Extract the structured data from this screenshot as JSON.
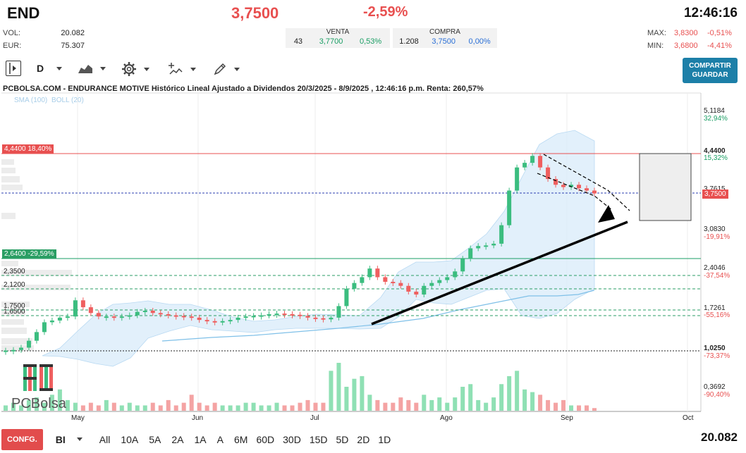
{
  "header": {
    "ticker": "END",
    "price": "3,7500",
    "change": "-2,59%",
    "clock": "12:46:16",
    "vol_label": "VOL:",
    "vol_value": "20.082",
    "eur_label": "EUR:",
    "eur_value": "75.307",
    "venta_label": "VENTA",
    "venta_qty": "43",
    "venta_price": "3,7700",
    "venta_pct": "0,53%",
    "compra_label": "COMPRA",
    "compra_qty": "1.208",
    "compra_price": "3,7500",
    "compra_pct": "0,00%",
    "max_label": "MAX:",
    "max_value": "3,8300",
    "max_pct": "-0,51%",
    "min_label": "MIN:",
    "min_value": "3,6800",
    "min_pct": "-4,41%"
  },
  "toolbar": {
    "period": "D",
    "share_label_1": "COMPARTIR",
    "share_label_2": "GUARDAR"
  },
  "chart": {
    "title": "PCBOLSA.COM - ENDURANCE MOTIVE Histórico Lineal Ajustado a Dividendos 20/3/2025 - 8/9/2025 , 12:46:16 p.m. Renta: 260,57%",
    "legend_sma": "SMA (100)",
    "legend_boll": "BOLL (20)",
    "tag_high": "4,4400  18,40%",
    "tag_mid": "2,6400  -29,59%",
    "level_2350": "2,3500",
    "level_2120": "2,1200",
    "level_1750": "1,7500",
    "level_1650": "1,6500",
    "right_axis": [
      {
        "price": "5,1184",
        "pct": "32,94%",
        "pct_color": "#1a9e64"
      },
      {
        "price": "4,4400",
        "pct": "15,32%",
        "pct_color": "#1a9e64"
      },
      {
        "price": "3,7615",
        "pct": "",
        "pct_color": ""
      },
      {
        "price": "3,0830",
        "pct": "-19,91%",
        "pct_color": "#e85050"
      },
      {
        "price": "2,4046",
        "pct": "-37,54%",
        "pct_color": "#e85050"
      },
      {
        "price": "1,7261",
        "pct": "-55,16%",
        "pct_color": "#e85050"
      },
      {
        "price": "1,0250",
        "pct": "-73,37%",
        "pct_color": "#e85050"
      },
      {
        "price": "0,3692",
        "pct": "-90,40%",
        "pct_color": "#e85050"
      }
    ],
    "current_tag": "3,7500",
    "months": [
      "May",
      "Jun",
      "Jul",
      "Ago",
      "Sep",
      "Oct"
    ],
    "logo_text": "PCBolsa"
  },
  "chart_data": {
    "type": "candlestick",
    "title": "PCBOLSA.COM - ENDURANCE MOTIVE Histórico Lineal Ajustado a Dividendos 20/3/2025 - 8/9/2025",
    "x_labels": [
      "May",
      "Jun",
      "Jul",
      "Ago",
      "Sep",
      "Oct"
    ],
    "ylim": [
      0.3692,
      5.1184
    ],
    "close_series": [
      1.03,
      1.04,
      1.08,
      1.2,
      1.35,
      1.52,
      1.55,
      1.6,
      1.62,
      1.9,
      1.78,
      1.68,
      1.62,
      1.62,
      1.6,
      1.62,
      1.64,
      1.7,
      1.72,
      1.68,
      1.66,
      1.64,
      1.63,
      1.62,
      1.6,
      1.56,
      1.54,
      1.52,
      1.54,
      1.56,
      1.6,
      1.62,
      1.63,
      1.64,
      1.66,
      1.67,
      1.66,
      1.65,
      1.63,
      1.6,
      1.59,
      1.57,
      1.6,
      1.8,
      2.1,
      2.2,
      2.3,
      2.45,
      2.3,
      2.22,
      2.2,
      2.15,
      2.05,
      2.0,
      2.15,
      2.2,
      2.25,
      2.3,
      2.4,
      2.62,
      2.8,
      2.84,
      2.85,
      2.88,
      3.2,
      3.8,
      4.2,
      4.28,
      4.4,
      4.2,
      4.0,
      3.9,
      3.86,
      3.9,
      3.84,
      3.8,
      3.75
    ]
  },
  "volume_data": [
    2,
    3,
    2,
    4,
    5,
    3,
    6,
    8,
    4,
    3,
    2,
    3,
    2,
    4,
    3,
    2,
    3,
    2,
    2,
    3,
    2,
    4,
    2,
    3,
    6,
    3,
    2,
    3,
    2,
    2,
    2,
    3,
    3,
    2,
    2,
    3,
    2,
    2,
    3,
    4,
    3,
    3,
    15,
    18,
    9,
    12,
    13,
    6,
    4,
    3,
    3,
    5,
    4,
    3,
    6,
    4,
    5,
    3,
    5,
    9,
    10,
    4,
    3,
    5,
    10,
    13,
    15,
    8,
    7,
    6,
    4,
    3,
    4,
    2,
    2,
    2,
    1
  ],
  "bottom": {
    "confg": "CONFG.",
    "bi": "BI",
    "ranges": [
      "All",
      "10A",
      "5A",
      "2A",
      "1A",
      "A",
      "6M",
      "60D",
      "30D",
      "15D",
      "5D",
      "2D",
      "1D"
    ],
    "volume_total": "20.082"
  },
  "colors": {
    "up": "#3bbd7f",
    "down": "#ef5f5f",
    "boll_fill": "#d8ebfa",
    "sma": "#7fc0e8",
    "accent": "#1c7fa8"
  }
}
